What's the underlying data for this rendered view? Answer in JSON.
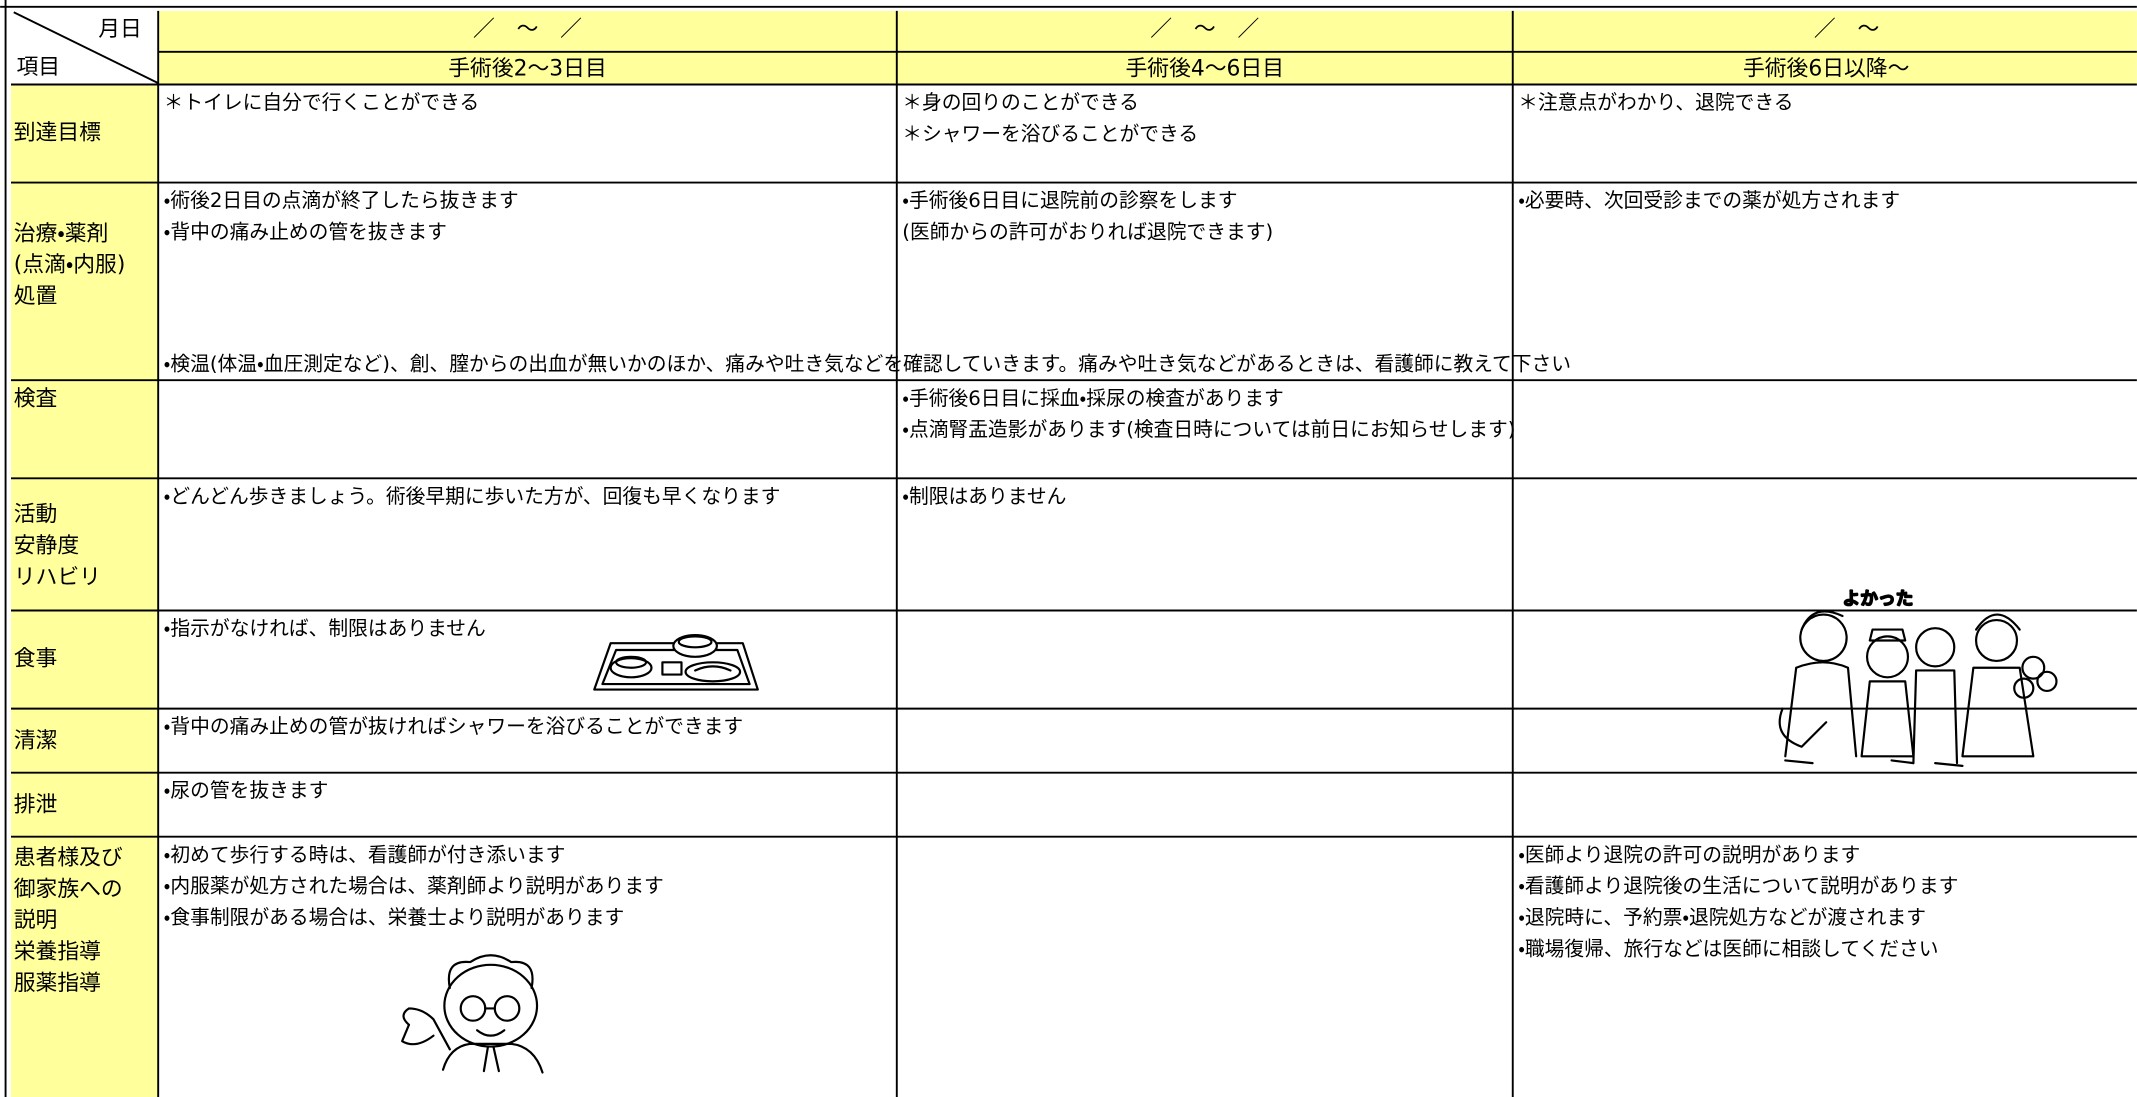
{
  "header": {
    "month_day": "月日",
    "item": "項目",
    "periods": [
      {
        "date": "／　～　／",
        "label": "手術後2～3日目"
      },
      {
        "date": "／　～　／",
        "label": "手術後4～6日目"
      },
      {
        "date": "／　～",
        "label": "手術後6日以降～"
      }
    ]
  },
  "rows": [
    {
      "label": [
        "到達目標"
      ],
      "cells": [
        [
          "＊トイレに自分で行くことができる"
        ],
        [
          "＊身の回りのことができる",
          "＊シャワーを浴びることができる"
        ],
        [
          "＊注意点がわかり、退院できる"
        ]
      ]
    },
    {
      "label": [
        "治療・薬剤",
        "(点滴・内服)",
        "処置"
      ],
      "cells": [
        [
          "・術後2日目の点滴が終了したら抜きます",
          "・背中の痛み止めの管を抜きます"
        ],
        [
          "・手術後6日目に退院前の診察をします",
          "(医師からの許可がおりれば退院できます)"
        ],
        [
          "・必要時、次回受診までの薬が処方されます"
        ]
      ],
      "note": "・検温(体温・血圧測定など)、創、膣からの出血が無いかのほか、痛みや吐き気などを確認していきます。痛みや吐き気などがあるときは、看護師に教えて下さい"
    },
    {
      "label": [
        "検査"
      ],
      "cells": [
        [],
        [
          "・手術後6日目に採血・採尿の検査があります",
          "・点滴腎盂造影があります(検査日時については前日にお知らせします)"
        ],
        []
      ]
    },
    {
      "label": [
        "活動",
        "安静度",
        "リハビリ"
      ],
      "cells": [
        [
          "・どんどん歩きましょう。術後早期に歩いた方が、回復も早くなります"
        ],
        [
          "・制限はありません"
        ],
        []
      ]
    },
    {
      "label": [
        "食事"
      ],
      "cells": [
        [
          "・指示がなければ、制限はありません"
        ],
        [],
        []
      ]
    },
    {
      "label": [
        "清潔"
      ],
      "cells": [
        [
          "・背中の痛み止めの管が抜ければシャワーを浴びることができます"
        ],
        [],
        []
      ]
    },
    {
      "label": [
        "排泄"
      ],
      "cells": [
        [
          "・尿の管を抜きます"
        ],
        [],
        []
      ]
    },
    {
      "label": [
        "患者様及び",
        "御家族への",
        "説明",
        "栄養指導",
        "服薬指導"
      ],
      "cells": [
        [
          "・初めて歩行する時は、看護師が付き添います",
          "・内服薬が処方された場合は、薬剤師より説明があります",
          "・食事制限がある場合は、栄養士より説明があります"
        ],
        [],
        [
          "・医師より退院の許可の説明があります",
          "・看護師より退院後の生活について説明があります",
          "・退院時に、予約票・退院処方などが渡されます",
          "・職場復帰、旅行などは医師に相談してください"
        ]
      ]
    }
  ]
}
